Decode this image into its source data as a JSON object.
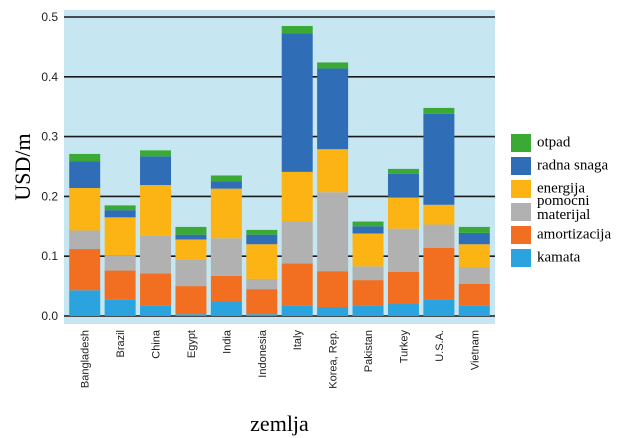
{
  "chart_data": {
    "type": "bar",
    "stacked": true,
    "xlabel": "zemlja",
    "ylabel": "USD/m",
    "ylim": [
      0,
      0.5
    ],
    "yticks": [
      "0.0",
      "0.1",
      "0.2",
      "0.3",
      "0.4",
      "0.5"
    ],
    "grid": "horizontal",
    "legend_position": "right",
    "plot_background": "#c6e7f2",
    "categories": [
      "Bangladesh",
      "Brazil",
      "China",
      "Egypt",
      "India",
      "Indonesia",
      "Italy",
      "Korea, Rep.",
      "Pakistan",
      "Turkey",
      "U.S.A.",
      "Vietnam"
    ],
    "series": [
      {
        "name": "kamata",
        "color": "#2aa3df",
        "values": [
          0.043,
          0.027,
          0.018,
          0.003,
          0.025,
          0.003,
          0.018,
          0.015,
          0.018,
          0.02,
          0.028,
          0.018
        ]
      },
      {
        "name": "amortizacija",
        "color": "#f26f21",
        "values": [
          0.069,
          0.049,
          0.053,
          0.047,
          0.042,
          0.042,
          0.07,
          0.06,
          0.042,
          0.054,
          0.086,
          0.036
        ]
      },
      {
        "name": "pomoćni materijal",
        "color": "#b1b1b1",
        "values": [
          0.031,
          0.025,
          0.063,
          0.045,
          0.063,
          0.017,
          0.07,
          0.132,
          0.023,
          0.072,
          0.039,
          0.028
        ]
      },
      {
        "name": "energija",
        "color": "#fbb414",
        "values": [
          0.071,
          0.064,
          0.085,
          0.033,
          0.083,
          0.058,
          0.083,
          0.072,
          0.055,
          0.052,
          0.033,
          0.038
        ]
      },
      {
        "name": "radna snaga",
        "color": "#2f6eb6",
        "values": [
          0.045,
          0.012,
          0.048,
          0.008,
          0.012,
          0.016,
          0.232,
          0.135,
          0.012,
          0.04,
          0.152,
          0.019
        ]
      },
      {
        "name": "otpad",
        "color": "#3aaa35",
        "values": [
          0.012,
          0.008,
          0.01,
          0.013,
          0.01,
          0.008,
          0.012,
          0.01,
          0.008,
          0.008,
          0.01,
          0.01
        ]
      }
    ]
  }
}
